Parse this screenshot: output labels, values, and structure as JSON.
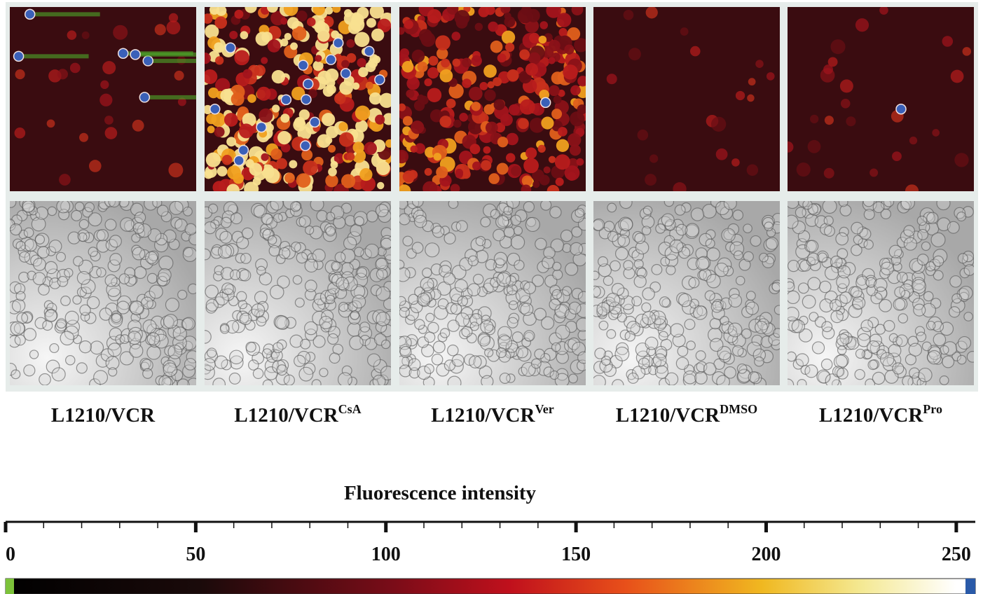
{
  "panels": [
    {
      "label": "L1210/VCR"
    },
    {
      "label": "L1210/VCR",
      "sup": "CsA"
    },
    {
      "label": "L1210/VCR",
      "sup": "Ver"
    },
    {
      "label": "L1210/VCR",
      "sup": "DMSO"
    },
    {
      "label": "L1210/VCR",
      "sup": "Pro"
    }
  ],
  "colorbar": {
    "title": "Fluorescence intensity",
    "xlim": [
      0,
      255
    ],
    "xticks": [
      0,
      50,
      100,
      150,
      200,
      250
    ]
  }
}
